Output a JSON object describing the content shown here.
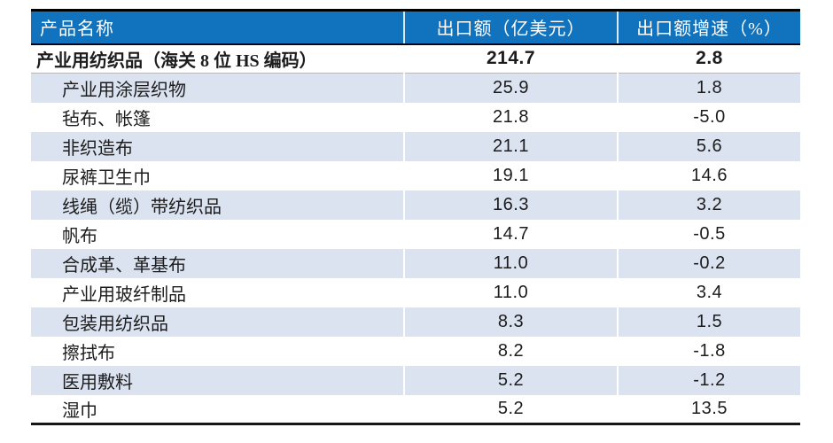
{
  "table": {
    "headers": [
      "产品名称",
      "出口额（亿美元）",
      "出口额增速（%）"
    ],
    "rows": [
      {
        "name": "产业用纺织品（海关 8 位 HS 编码）",
        "export": "214.7",
        "growth": "2.8",
        "total": true
      },
      {
        "name": "产业用涂层织物",
        "export": "25.9",
        "growth": "1.8",
        "total": false
      },
      {
        "name": "毡布、帐篷",
        "export": "21.8",
        "growth": "-5.0",
        "total": false
      },
      {
        "name": "非织造布",
        "export": "21.1",
        "growth": "5.6",
        "total": false
      },
      {
        "name": "尿裤卫生巾",
        "export": "19.1",
        "growth": "14.6",
        "total": false
      },
      {
        "name": "线绳（缆）带纺织品",
        "export": "16.3",
        "growth": "3.2",
        "total": false
      },
      {
        "name": "帆布",
        "export": "14.7",
        "growth": "-0.5",
        "total": false
      },
      {
        "name": "合成革、革基布",
        "export": "11.0",
        "growth": "-0.2",
        "total": false
      },
      {
        "name": "产业用玻纤制品",
        "export": "11.0",
        "growth": "3.4",
        "total": false
      },
      {
        "name": "包装用纺织品",
        "export": "8.3",
        "growth": "1.5",
        "total": false
      },
      {
        "name": "擦拭布",
        "export": "8.2",
        "growth": "-1.8",
        "total": false
      },
      {
        "name": "医用敷料",
        "export": "5.2",
        "growth": "-1.2",
        "total": false
      },
      {
        "name": "湿巾",
        "export": "5.2",
        "growth": "13.5",
        "total": false
      }
    ]
  },
  "colors": {
    "header_bg": "#1173BE",
    "header_text": "#FFFFFF",
    "stripe": "#DBE3F1",
    "text": "#1C1C1C",
    "border_dark": "#000000"
  },
  "chart_data": {
    "type": "table",
    "title": "",
    "columns": [
      "产品名称",
      "出口额（亿美元）",
      "出口额增速（%）"
    ],
    "rows": [
      [
        "产业用纺织品（海关 8 位 HS 编码）",
        214.7,
        2.8
      ],
      [
        "产业用涂层织物",
        25.9,
        1.8
      ],
      [
        "毡布、帐篷",
        21.8,
        -5.0
      ],
      [
        "非织造布",
        21.1,
        5.6
      ],
      [
        "尿裤卫生巾",
        19.1,
        14.6
      ],
      [
        "线绳（缆）带纺织品",
        16.3,
        3.2
      ],
      [
        "帆布",
        14.7,
        -0.5
      ],
      [
        "合成革、革基布",
        11.0,
        -0.2
      ],
      [
        "产业用玻纤制品",
        11.0,
        3.4
      ],
      [
        "包装用纺织品",
        8.3,
        1.5
      ],
      [
        "擦拭布",
        8.2,
        -1.8
      ],
      [
        "医用敷料",
        5.2,
        -1.2
      ],
      [
        "湿巾",
        5.2,
        13.5
      ]
    ]
  }
}
